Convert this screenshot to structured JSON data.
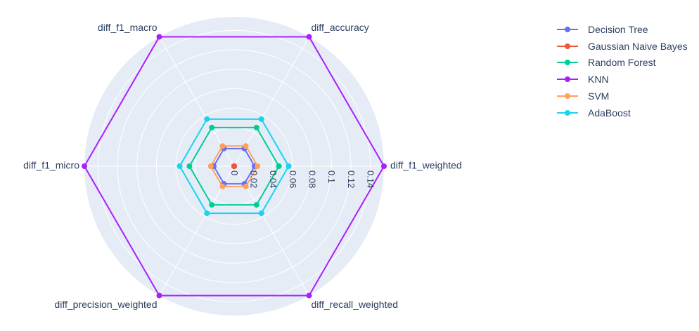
{
  "chart_data": {
    "type": "radar",
    "axes": [
      "diff_f1_weighted",
      "diff_accuracy",
      "diff_f1_macro",
      "diff_f1_micro",
      "diff_precision_weighted",
      "diff_recall_weighted"
    ],
    "radial_ticks": [
      "0",
      "0.02",
      "0.04",
      "0.06",
      "0.08",
      "0.1",
      "0.12",
      "0.14"
    ],
    "radial_tick_values": [
      0,
      0.02,
      0.04,
      0.06,
      0.08,
      0.1,
      0.12,
      0.14
    ],
    "radial_range": [
      0,
      0.154
    ],
    "grid": true,
    "background_color": "#e5ecf6",
    "legend_position": "top-right",
    "series": [
      {
        "name": "Decision Tree",
        "color": "#636efa",
        "values": [
          0.021,
          0.021,
          0.021,
          0.021,
          0.021,
          0.021
        ]
      },
      {
        "name": "Gaussian Naive Bayes",
        "color": "#ef553b",
        "values": [
          0.0,
          0.0,
          0.0,
          0.0,
          0.0,
          0.0
        ]
      },
      {
        "name": "Random Forest",
        "color": "#00cc96",
        "values": [
          0.046,
          0.046,
          0.046,
          0.046,
          0.046,
          0.046
        ]
      },
      {
        "name": "KNN",
        "color": "#ab1ffe",
        "values": [
          0.154,
          0.154,
          0.154,
          0.154,
          0.154,
          0.154
        ]
      },
      {
        "name": "SVM",
        "color": "#ffa15a",
        "values": [
          0.024,
          0.024,
          0.024,
          0.024,
          0.024,
          0.024
        ]
      },
      {
        "name": "AdaBoost",
        "color": "#19d3f3",
        "values": [
          0.056,
          0.056,
          0.056,
          0.056,
          0.056,
          0.056
        ]
      }
    ]
  }
}
